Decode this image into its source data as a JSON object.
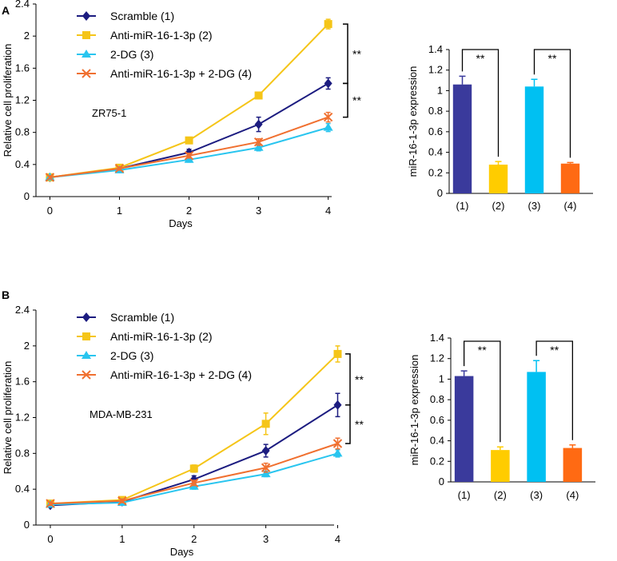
{
  "panels": [
    {
      "letter": "A",
      "cell_line": "ZR75-1",
      "significance": "**"
    },
    {
      "letter": "B",
      "cell_line": "MDA-MB-231",
      "significance": "**"
    }
  ],
  "colors": {
    "scramble": "#1c1c80",
    "anti": "#f5c518",
    "dg": "#29c5ef",
    "combo": "#f07030",
    "bar1": "#3a3a9c",
    "bar2": "#ffcc00",
    "bar3": "#00c0f2",
    "bar4": "#ff6a13"
  },
  "chart_data": [
    {
      "id": "A-line",
      "type": "line",
      "xlabel": "Days",
      "ylabel": "Relative cell proliferation",
      "x": [
        0,
        1,
        2,
        3,
        4
      ],
      "xticks": [
        "0",
        "1",
        "2",
        "3",
        "4"
      ],
      "yticks": [
        "0",
        "0.4",
        "0.8",
        "1.2",
        "1.6",
        "2",
        "2.4"
      ],
      "ylim": [
        0,
        2.4
      ],
      "annotation": "ZR75-1",
      "series": [
        {
          "name": "Scramble (1)",
          "marker": "diamond",
          "color_key": "scramble",
          "values": [
            0.24,
            0.35,
            0.55,
            0.9,
            1.41
          ],
          "errors": [
            0.02,
            0.02,
            0.04,
            0.09,
            0.07
          ]
        },
        {
          "name": "Anti-miR-16-1-3p (2)",
          "marker": "square",
          "color_key": "anti",
          "values": [
            0.24,
            0.36,
            0.7,
            1.26,
            2.15
          ],
          "errors": [
            0.02,
            0.02,
            0.04,
            0.04,
            0.06
          ]
        },
        {
          "name": "2-DG (3)",
          "marker": "triangle",
          "color_key": "dg",
          "values": [
            0.24,
            0.33,
            0.46,
            0.61,
            0.86
          ],
          "errors": [
            0.02,
            0.02,
            0.03,
            0.04,
            0.05
          ]
        },
        {
          "name": "Anti-miR-16-1-3p + 2-DG (4)",
          "marker": "x",
          "color_key": "combo",
          "values": [
            0.24,
            0.35,
            0.51,
            0.68,
            0.99
          ],
          "errors": [
            0.02,
            0.02,
            0.03,
            0.04,
            0.06
          ]
        }
      ]
    },
    {
      "id": "A-bar",
      "type": "bar",
      "ylabel": "miR-16-1-3p expression",
      "categories": [
        "(1)",
        "(2)",
        "(3)",
        "(4)"
      ],
      "values": [
        1.06,
        0.28,
        1.04,
        0.29
      ],
      "errors": [
        0.08,
        0.03,
        0.07,
        0.01
      ],
      "color_keys": [
        "bar1",
        "bar2",
        "bar3",
        "bar4"
      ],
      "yticks": [
        "0",
        "0.2",
        "0.4",
        "0.6",
        "0.8",
        "1",
        "1.2",
        "1.4"
      ],
      "ylim": [
        0,
        1.4
      ]
    },
    {
      "id": "B-line",
      "type": "line",
      "xlabel": "Days",
      "ylabel": "Relative cell proliferation",
      "x": [
        0,
        1,
        2,
        3,
        4
      ],
      "xticks": [
        "0",
        "1",
        "2",
        "3",
        "4"
      ],
      "yticks": [
        "0",
        "0.4",
        "0.8",
        "1.2",
        "1.6",
        "2",
        "2.4"
      ],
      "ylim": [
        0,
        2.4
      ],
      "annotation": "MDA-MB-231",
      "series": [
        {
          "name": "Scramble (1)",
          "marker": "diamond",
          "color_key": "scramble",
          "values": [
            0.22,
            0.26,
            0.51,
            0.83,
            1.34
          ],
          "errors": [
            0.02,
            0.02,
            0.04,
            0.07,
            0.13
          ]
        },
        {
          "name": "Anti-miR-16-1-3p (2)",
          "marker": "square",
          "color_key": "anti",
          "values": [
            0.24,
            0.28,
            0.63,
            1.13,
            1.91
          ],
          "errors": [
            0.02,
            0.02,
            0.04,
            0.12,
            0.09
          ]
        },
        {
          "name": "2-DG (3)",
          "marker": "triangle",
          "color_key": "dg",
          "values": [
            0.23,
            0.25,
            0.43,
            0.57,
            0.8
          ],
          "errors": [
            0.02,
            0.02,
            0.03,
            0.03,
            0.04
          ]
        },
        {
          "name": "Anti-miR-16-1-3p + 2-DG (4)",
          "marker": "x",
          "color_key": "combo",
          "values": [
            0.24,
            0.27,
            0.47,
            0.64,
            0.91
          ],
          "errors": [
            0.02,
            0.02,
            0.03,
            0.05,
            0.06
          ]
        }
      ]
    },
    {
      "id": "B-bar",
      "type": "bar",
      "ylabel": "miR-16-1-3p expression",
      "categories": [
        "(1)",
        "(2)",
        "(3)",
        "(4)"
      ],
      "values": [
        1.03,
        0.31,
        1.07,
        0.33
      ],
      "errors": [
        0.05,
        0.03,
        0.11,
        0.03
      ],
      "color_keys": [
        "bar1",
        "bar2",
        "bar3",
        "bar4"
      ],
      "yticks": [
        "0",
        "0.2",
        "0.4",
        "0.6",
        "0.8",
        "1",
        "1.2",
        "1.4"
      ],
      "ylim": [
        0,
        1.4
      ]
    }
  ]
}
